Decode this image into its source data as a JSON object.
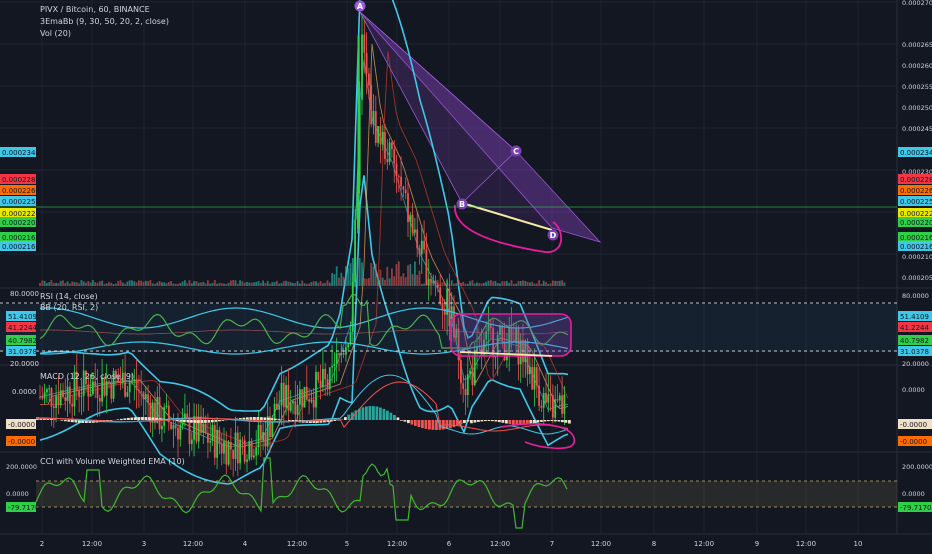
{
  "header": {
    "symbol_line": "PIVX / Bitcoin, 60, BINANCE",
    "indicator_line": "3EmaBb (9, 30, 50, 20, 2, close)",
    "vol_line": "Vol (20)"
  },
  "colors": {
    "background": "#131722",
    "up": "#26a69a",
    "up_candle": "#2fd048",
    "down": "#ef5350",
    "bb_band": "#3fc8e8",
    "pattern_fill": "#7b3fb0",
    "pattern_edge": "#9b59d6",
    "highlight": "#e91e9a",
    "rsi_line": "#4caf50",
    "cci_line": "#3fb832",
    "hline": "#ffffff",
    "grid": "#1e2330"
  },
  "price_axis_ticks": [
    "0.0002700",
    "0.0002650",
    "0.0002600",
    "0.0002550",
    "0.0002500",
    "0.0002450",
    "0.0002400",
    "0.0002300",
    "0.0002150",
    "0.0002100",
    "0.0002050"
  ],
  "price_badges": [
    {
      "text": "0.0002348",
      "color": "#3fc8e8"
    },
    {
      "text": "0.0002283",
      "color": "#f23645"
    },
    {
      "text": "0.0002266",
      "color": "#ff6d00"
    },
    {
      "text": "0.0002257",
      "color": "#3fc8e8"
    },
    {
      "text": "0.0002221",
      "color": "#e8e800"
    },
    {
      "text": "0.0002203",
      "color": "#2fd048"
    },
    {
      "text": "0.0002168",
      "color": "#2fd048"
    },
    {
      "text": "0.0002166",
      "color": "#3fc8e8"
    }
  ],
  "x_axis_labels": [
    "2",
    "12:00",
    "3",
    "12:00",
    "4",
    "12:00",
    "5",
    "12:00",
    "6",
    "12:00",
    "7",
    "12:00",
    "8",
    "12:00",
    "9",
    "12:00",
    "10"
  ],
  "pattern_labels": {
    "a": "A",
    "b": "B",
    "c": "C",
    "d": "D"
  },
  "rsi": {
    "title_line": "RSI (14, close)",
    "bb_line": "BB (20, RSI, 2)",
    "top_tick": "80.0000",
    "bottom_tick": "20.0000",
    "left_badges": [
      {
        "text": "51.4109",
        "color": "#3fc8e8"
      },
      {
        "text": "41.2244",
        "color": "#f23645"
      },
      {
        "text": "40.7982",
        "color": "#2fd048"
      },
      {
        "text": "31.0378",
        "color": "#3fc8e8"
      }
    ],
    "right_ticks": [
      "80.0000",
      "20.0000"
    ],
    "right_badges": [
      {
        "text": "51.4109",
        "color": "#3fc8e8"
      },
      {
        "text": "41.2244",
        "color": "#f23645"
      },
      {
        "text": "40.7982",
        "color": "#2fd048"
      },
      {
        "text": "31.0378",
        "color": "#3fc8e8"
      }
    ]
  },
  "macd": {
    "title_line": "MACD (12, 26, close, 9)",
    "zero_tick": "0.0000",
    "left_badges": [
      {
        "text": "-0.0000",
        "color": "#f0e0c8"
      },
      {
        "text": "-0.0000",
        "color": "#ff6d00"
      }
    ],
    "right_ticks": [
      "0.0000"
    ],
    "right_badges": [
      {
        "text": "-0.0000",
        "color": "#f0e0c8"
      },
      {
        "text": "-0.0000",
        "color": "#ff6d00"
      }
    ]
  },
  "cci": {
    "title_line": "CCI with Volume Weighted EMA (10)",
    "ticks": [
      "200.0000",
      "0.0000",
      "-200.0000"
    ],
    "left_badge": {
      "text": "-79.7170",
      "color": "#2fd048"
    },
    "right_ticks": [
      "200.0000",
      "0.0000",
      "-200.0000"
    ],
    "right_badge": {
      "text": "-79.7170",
      "color": "#2fd048"
    }
  },
  "chart_data": {
    "type": "line",
    "ylim": [
      0.000205,
      0.00027
    ],
    "x": [
      "2",
      "12:00",
      "3",
      "12:00",
      "4",
      "12:00",
      "5",
      "12:00",
      "6",
      "12:00",
      "7"
    ],
    "series": [
      {
        "values": [
          0.000223,
          0.0002245,
          0.0002215,
          0.000218,
          0.000218,
          0.0002235,
          0.000242,
          0.000243,
          0.00023,
          0.000228,
          0.0002221
        ]
      }
    ]
  }
}
